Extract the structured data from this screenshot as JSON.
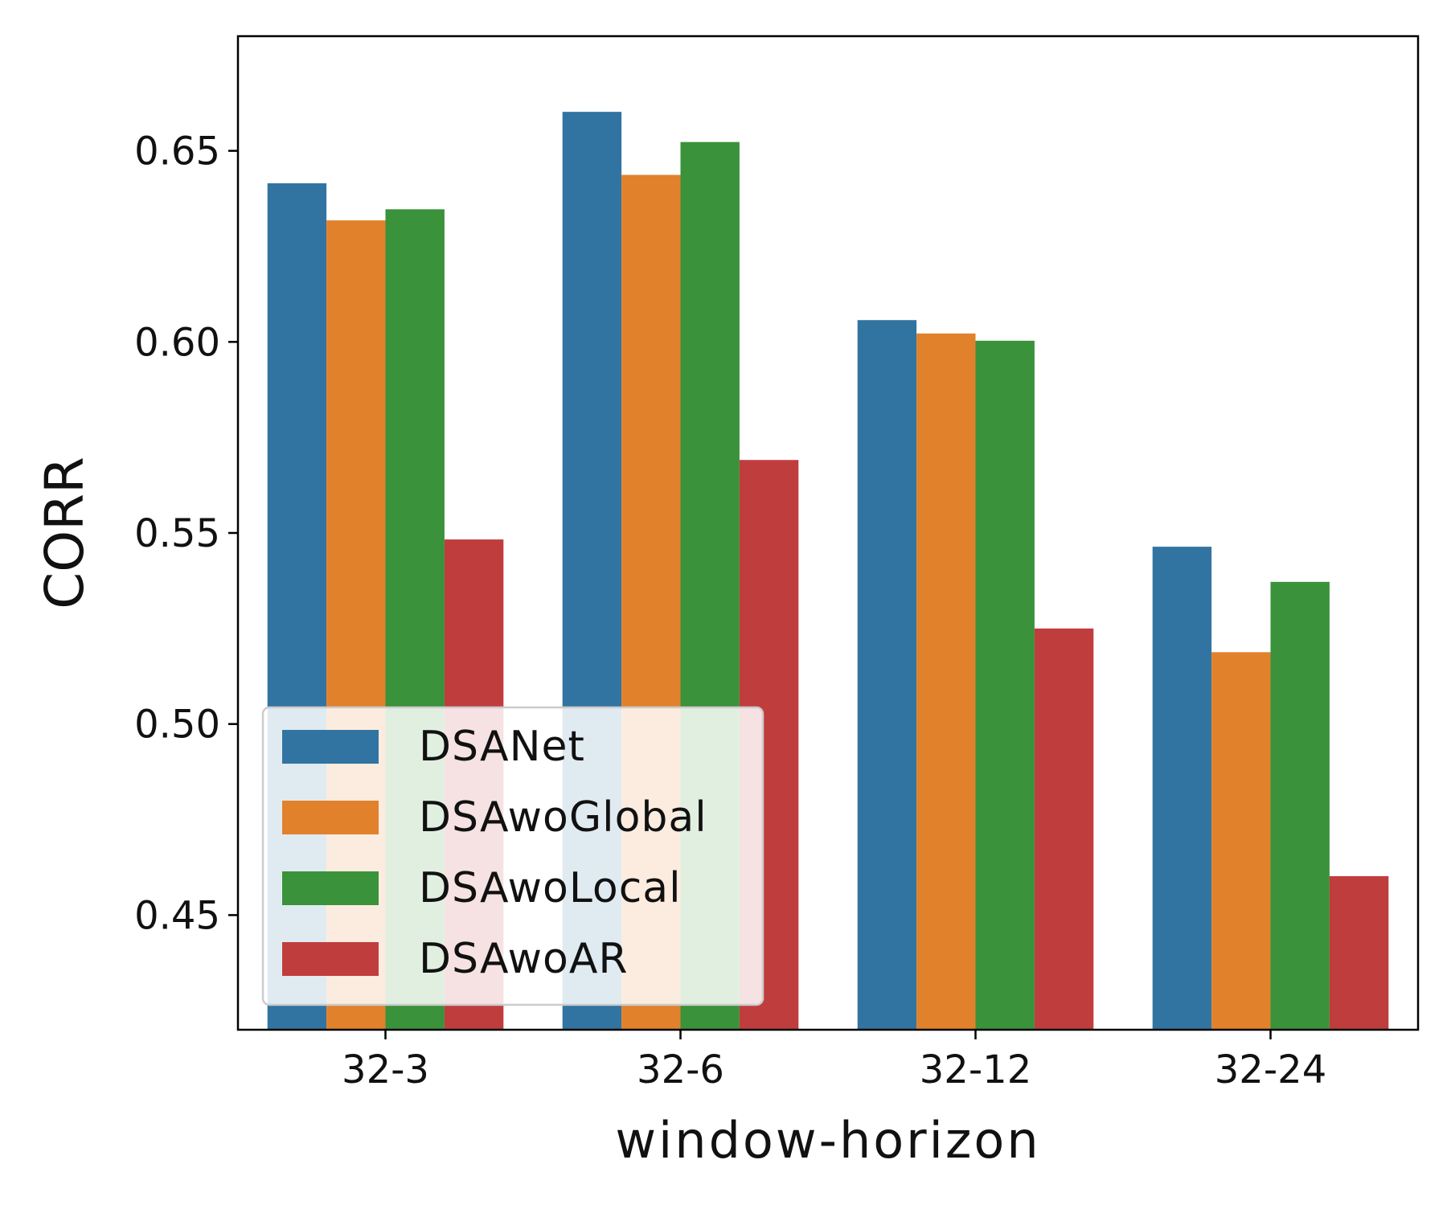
{
  "chart_data": {
    "type": "bar",
    "title": "",
    "xlabel": "window-horizon",
    "ylabel": "CORR",
    "categories": [
      "32-3",
      "32-6",
      "32-12",
      "32-24"
    ],
    "series": [
      {
        "name": "DSANet",
        "color": "#3274a1",
        "values": [
          0.6415,
          0.6602,
          0.6057,
          0.5464
        ]
      },
      {
        "name": "DSAwoGlobal",
        "color": "#e1812c",
        "values": [
          0.6318,
          0.6437,
          0.6022,
          0.5188
        ]
      },
      {
        "name": "DSAwoLocal",
        "color": "#3a923a",
        "values": [
          0.6347,
          0.6523,
          0.6003,
          0.5372
        ]
      },
      {
        "name": "DSAwoAR",
        "color": "#c03d3e",
        "values": [
          0.5483,
          0.5691,
          0.525,
          0.4602
        ]
      }
    ],
    "ylim": [
      0.42,
      0.68
    ],
    "yticks": [
      0.45,
      0.5,
      0.55,
      0.6,
      0.65
    ],
    "ytick_labels": [
      "0.45",
      "0.50",
      "0.55",
      "0.60",
      "0.65"
    ],
    "grid": false,
    "legend_position": "lower-left"
  }
}
